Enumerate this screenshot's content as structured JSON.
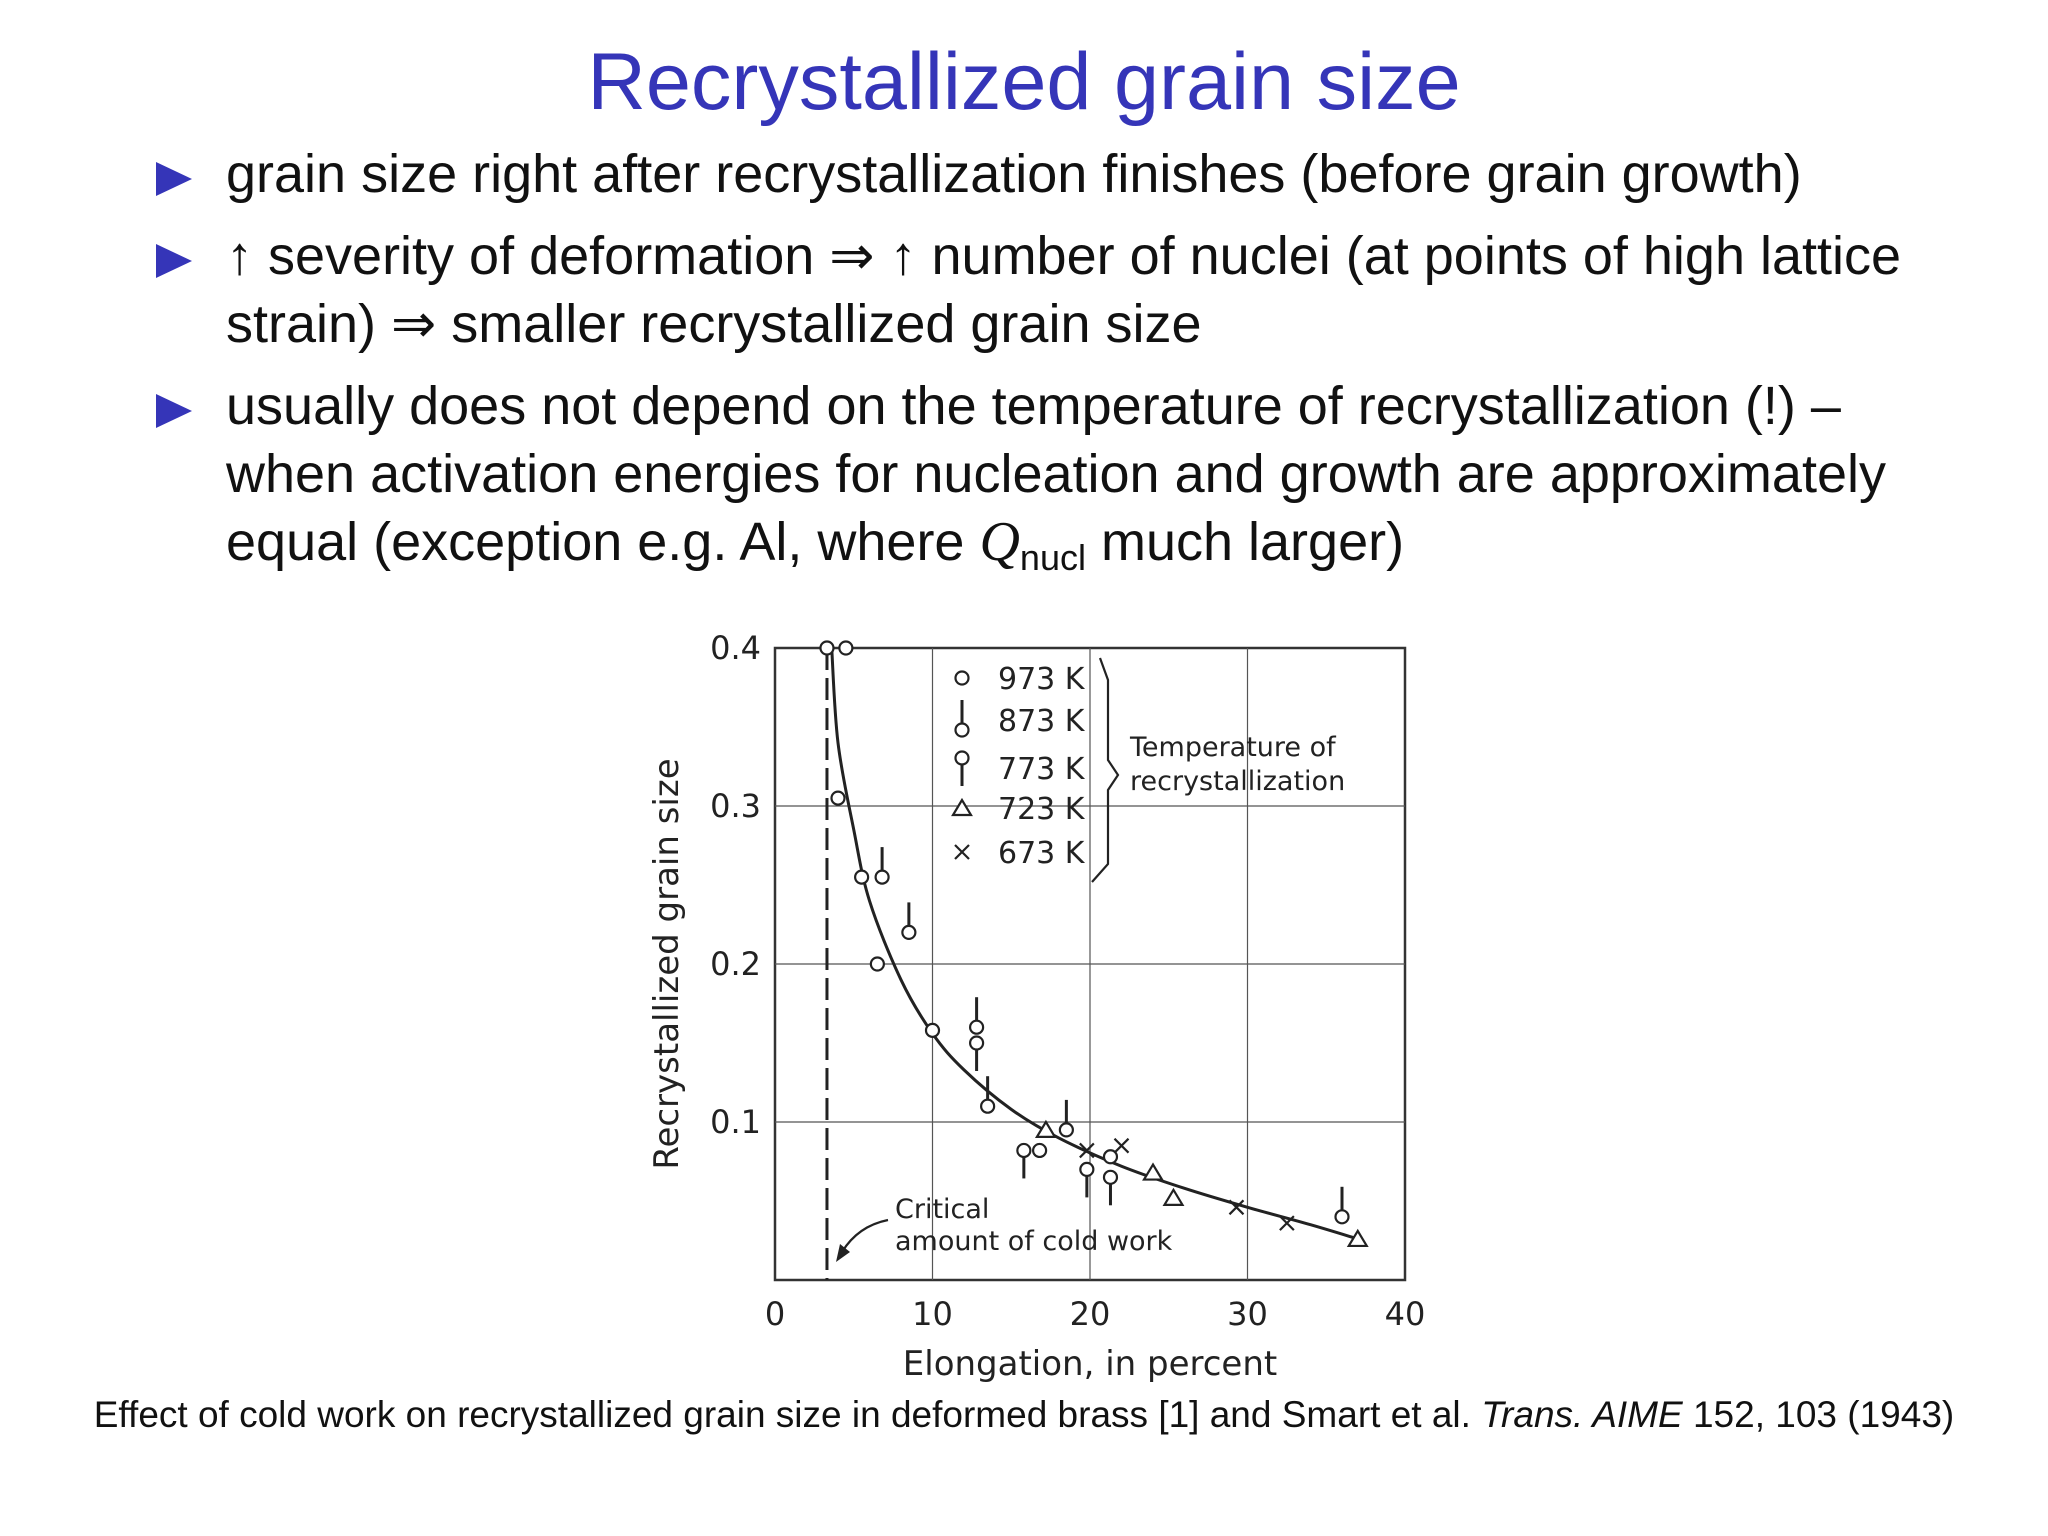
{
  "slide": {
    "title": "Recrystallized grain size",
    "bullets": [
      {
        "text": "grain size right after recrystallization finishes (before grain growth)"
      },
      {
        "text": "↑ severity of deformation ⇒ ↑ number of nuclei (at points of high lattice strain) ⇒ smaller recrystallized grain size"
      },
      {
        "text_before": "usually does not depend on the temperature of recrystallization (!) – when activation energies for nucleation and growth are approximately equal (exception e.g. Al, where ",
        "symbol": "Q",
        "subscript": "nucl",
        "text_after": " much larger)"
      }
    ],
    "caption": {
      "text_before": "Effect of cold work on recrystallized grain size in deformed brass [1] and Smart et al. ",
      "journal": "Trans. AIME",
      "text_after": " 152, 103 (1943)"
    }
  },
  "chart_data": {
    "type": "scatter",
    "xlabel": "Elongation, in percent",
    "ylabel": "Recrystallized grain size",
    "xlim": [
      0,
      40
    ],
    "ylim": [
      0,
      0.4
    ],
    "x_ticks": [
      "0",
      "10",
      "20",
      "30",
      "40"
    ],
    "y_ticks": [
      "0.1",
      "0.2",
      "0.3",
      "0.4"
    ],
    "grid": true,
    "legend_placement": "top-middle",
    "legend_group_label": "Temperature of recrystallization",
    "series": [
      {
        "name": "973 K",
        "marker": "circle",
        "points": [
          [
            3.3,
            0.4
          ],
          [
            4.5,
            0.4
          ],
          [
            4.0,
            0.305
          ],
          [
            5.5,
            0.255
          ],
          [
            6.5,
            0.2
          ],
          [
            10,
            0.158
          ],
          [
            16.8,
            0.082
          ],
          [
            21.3,
            0.078
          ]
        ]
      },
      {
        "name": "873 K",
        "marker": "circle-stem-up",
        "points": [
          [
            6.8,
            0.255
          ],
          [
            8.5,
            0.22
          ],
          [
            12.8,
            0.16
          ],
          [
            13.5,
            0.11
          ],
          [
            18.5,
            0.095
          ],
          [
            36.0,
            0.04
          ]
        ]
      },
      {
        "name": "773 K",
        "marker": "circle-stem-down",
        "points": [
          [
            12.8,
            0.15
          ],
          [
            15.8,
            0.082
          ],
          [
            19.8,
            0.07
          ],
          [
            21.3,
            0.065
          ]
        ]
      },
      {
        "name": "723 K",
        "marker": "triangle",
        "points": [
          [
            17.2,
            0.095
          ],
          [
            24.0,
            0.068
          ],
          [
            25.3,
            0.052
          ],
          [
            37.0,
            0.026
          ]
        ]
      },
      {
        "name": "673 K",
        "marker": "cross",
        "points": [
          [
            19.8,
            0.082
          ],
          [
            22.0,
            0.085
          ],
          [
            29.3,
            0.046
          ],
          [
            32.5,
            0.036
          ]
        ]
      }
    ],
    "trend_curve": [
      [
        3.6,
        0.4
      ],
      [
        4.0,
        0.34
      ],
      [
        5.0,
        0.285
      ],
      [
        6.0,
        0.24
      ],
      [
        8.0,
        0.19
      ],
      [
        10.0,
        0.156
      ],
      [
        12.0,
        0.133
      ],
      [
        15.0,
        0.108
      ],
      [
        18.0,
        0.09
      ],
      [
        22.0,
        0.072
      ],
      [
        26.0,
        0.058
      ],
      [
        30.0,
        0.046
      ],
      [
        34.0,
        0.035
      ],
      [
        37.0,
        0.026
      ]
    ],
    "critical_line_x": 3.3,
    "annotation": {
      "text_line1": "Critical",
      "text_line2": "amount of cold work"
    }
  }
}
